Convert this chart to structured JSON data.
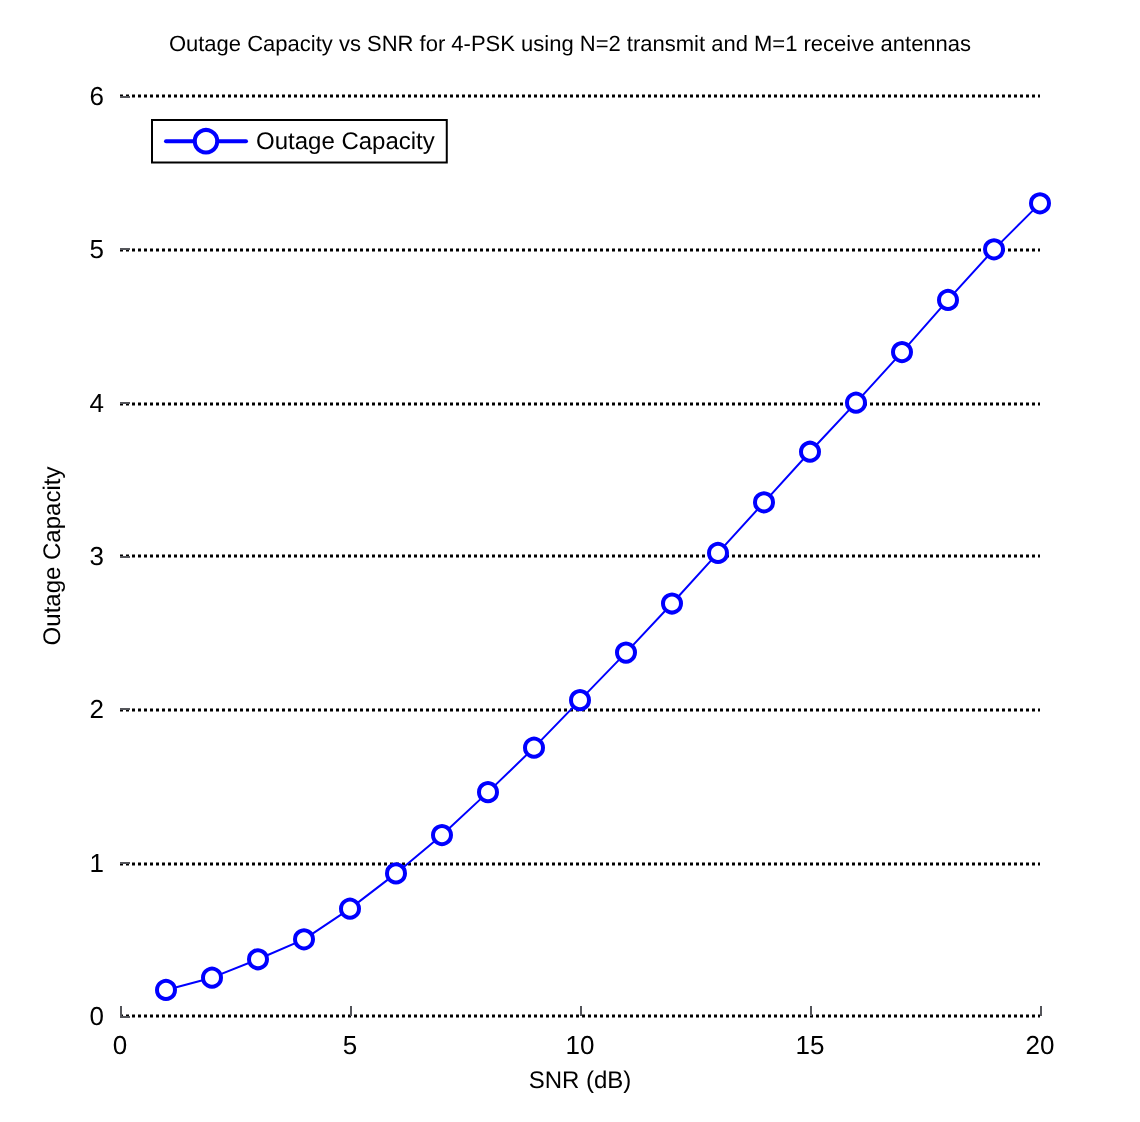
{
  "chart_data": {
    "type": "line",
    "title": "Outage Capacity vs SNR for 4-PSK using N=2 transmit and M=1 receive antennas",
    "xlabel": "SNR (dB)",
    "ylabel": "Outage Capacity",
    "x": [
      1,
      2,
      3,
      4,
      5,
      6,
      7,
      8,
      9,
      10,
      11,
      12,
      13,
      14,
      15,
      16,
      17,
      18,
      19,
      20
    ],
    "series": [
      {
        "name": "Outage Capacity",
        "color": "#0000ff",
        "values": [
          0.17,
          0.25,
          0.37,
          0.5,
          0.7,
          0.93,
          1.18,
          1.46,
          1.75,
          2.06,
          2.37,
          2.69,
          3.02,
          3.35,
          3.68,
          4.0,
          4.33,
          4.67,
          5.0,
          5.3
        ]
      }
    ],
    "xlim": [
      0,
      20
    ],
    "xticks": [
      0,
      5,
      10,
      15,
      20
    ],
    "ylim": [
      0,
      6
    ],
    "yticks": [
      0,
      1,
      2,
      3,
      4,
      5,
      6
    ],
    "grid": "y",
    "legend": "top left",
    "marker": "circle",
    "line_style": "solid"
  }
}
